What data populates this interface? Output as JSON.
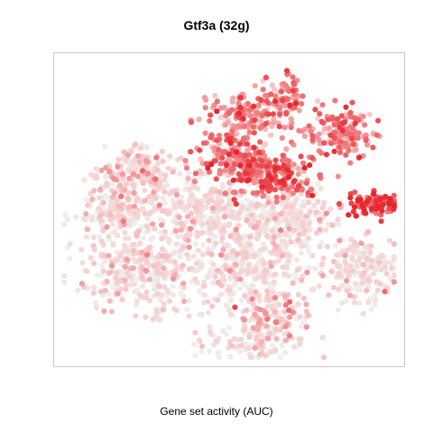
{
  "chart_data": {
    "type": "scatter",
    "title": "Gtf3a (32g)",
    "xlabel": "Gene set activity (AUC)",
    "ylabel": "",
    "grid": false,
    "legend": "none",
    "axes_visible": false,
    "colors": {
      "low": "#eeeeee",
      "mid": "#f8c9c9",
      "high": "#e8262d",
      "frame": "#c8c8c8"
    },
    "clusters": [
      {
        "name": "",
        "cx": 0.66,
        "cy": 0.85,
        "sx": 0.025,
        "sy": 0.04,
        "n": 70,
        "activity": 0.62
      },
      {
        "name": "",
        "cx": 0.82,
        "cy": 0.75,
        "sx": 0.05,
        "sy": 0.04,
        "n": 160,
        "activity": 0.6
      },
      {
        "name": "",
        "cx": 0.55,
        "cy": 0.79,
        "sx": 0.06,
        "sy": 0.04,
        "n": 160,
        "activity": 0.58
      },
      {
        "name": "",
        "cx": 0.51,
        "cy": 0.66,
        "sx": 0.05,
        "sy": 0.04,
        "n": 130,
        "activity": 0.62
      },
      {
        "name": "",
        "cx": 0.62,
        "cy": 0.61,
        "sx": 0.06,
        "sy": 0.035,
        "n": 200,
        "activity": 0.72
      },
      {
        "name": "",
        "cx": 0.91,
        "cy": 0.52,
        "sx": 0.04,
        "sy": 0.02,
        "n": 80,
        "activity": 0.85
      },
      {
        "name": "",
        "cx": 0.26,
        "cy": 0.62,
        "sx": 0.06,
        "sy": 0.04,
        "n": 150,
        "activity": 0.25
      },
      {
        "name": "",
        "cx": 0.18,
        "cy": 0.5,
        "sx": 0.06,
        "sy": 0.06,
        "n": 200,
        "activity": 0.18
      },
      {
        "name": "",
        "cx": 0.42,
        "cy": 0.5,
        "sx": 0.07,
        "sy": 0.05,
        "n": 240,
        "activity": 0.14
      },
      {
        "name": "",
        "cx": 0.65,
        "cy": 0.47,
        "sx": 0.08,
        "sy": 0.05,
        "n": 260,
        "activity": 0.12
      },
      {
        "name": "",
        "cx": 0.25,
        "cy": 0.31,
        "sx": 0.09,
        "sy": 0.07,
        "n": 300,
        "activity": 0.15
      },
      {
        "name": "",
        "cx": 0.55,
        "cy": 0.32,
        "sx": 0.1,
        "sy": 0.07,
        "n": 320,
        "activity": 0.13
      },
      {
        "name": "",
        "cx": 0.87,
        "cy": 0.31,
        "sx": 0.06,
        "sy": 0.06,
        "n": 170,
        "activity": 0.16
      },
      {
        "name": "",
        "cx": 0.63,
        "cy": 0.17,
        "sx": 0.05,
        "sy": 0.04,
        "n": 100,
        "activity": 0.35
      },
      {
        "name": "",
        "cx": 0.56,
        "cy": 0.08,
        "sx": 0.08,
        "sy": 0.03,
        "n": 120,
        "activity": 0.14
      }
    ]
  }
}
